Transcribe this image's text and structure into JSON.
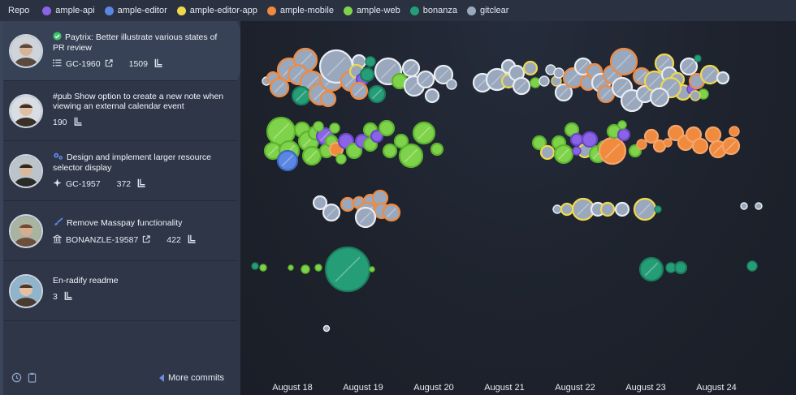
{
  "legend": {
    "title": "Repo",
    "items": [
      {
        "label": "ample-api",
        "color": "#8b63e6"
      },
      {
        "label": "ample-editor",
        "color": "#5b87e3"
      },
      {
        "label": "ample-editor-app",
        "color": "#efd84e"
      },
      {
        "label": "ample-mobile",
        "color": "#f08a3e"
      },
      {
        "label": "ample-web",
        "color": "#7fd34a"
      },
      {
        "label": "bonanza",
        "color": "#259e78"
      },
      {
        "label": "gitclear",
        "color": "#9aa8bd"
      }
    ]
  },
  "commits": [
    {
      "title": "Paytrix: Better illustrate various states of PR review",
      "icon": "check-circle-icon",
      "ticket": "GC-1960",
      "count": "1509",
      "active": true
    },
    {
      "title": "#pub Show option to create a new note when viewing an external calendar event",
      "icon": "",
      "ticket": "",
      "count": "190",
      "active": false
    },
    {
      "title": "Design and implement larger resource selector display",
      "icon": "gears-icon",
      "ticket": "GC-1957",
      "count": "372",
      "active": false
    },
    {
      "title": "Remove Masspay functionality",
      "icon": "brush-icon",
      "ticket": "BONANZLE-19587",
      "count": "422",
      "active": false
    },
    {
      "title": "En-radify readme",
      "icon": "",
      "ticket": "",
      "count": "3",
      "active": false
    }
  ],
  "footer": {
    "more_commits": "More commits"
  },
  "dates": [
    "August 18",
    "August 19",
    "August 20",
    "August 21",
    "August 22",
    "August 23",
    "August 24"
  ]
}
